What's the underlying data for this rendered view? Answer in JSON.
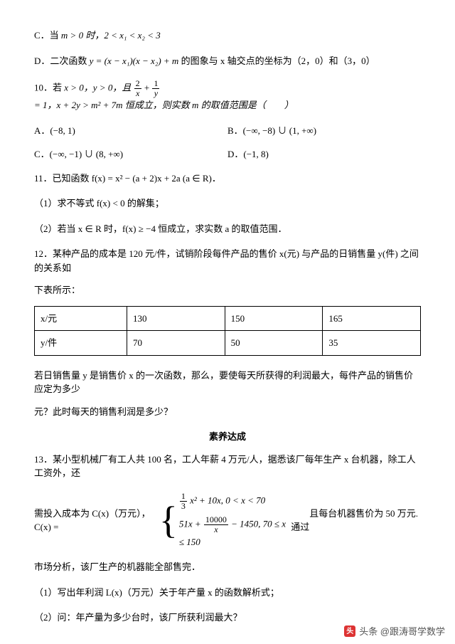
{
  "optC_prefix": "C．当 ",
  "optC_math": "m > 0 时，2 < x₁ < x₂ < 3",
  "optD_prefix": "D．二次函数 ",
  "optD_math": "y = (x − x₁)(x − x₂) + m",
  "optD_suffix": " 的图象与 x 轴交点的坐标为（2，0）和（3，0）",
  "q10_prefix": "10．若 ",
  "q10_cond": "x > 0，y > 0，且 ",
  "q10_eq_after": " = 1，x + 2y > m² + 7m 恒成立，则实数 m 的取值范围是（　　）",
  "q10_frac1_num": "2",
  "q10_frac1_den": "x",
  "q10_frac2_num": "1",
  "q10_frac2_den": "y",
  "q10A": "A．(−8, 1)",
  "q10B": "B．(−∞, −8) ∪ (1, +∞)",
  "q10C": "C．(−∞, −1) ∪ (8, +∞)",
  "q10D": "D．(−1, 8)",
  "q11": "11．已知函数 f(x) = x² − (a + 2)x + 2a (a ∈ R)．",
  "q11_1": "（1）求不等式 f(x) < 0 的解集；",
  "q11_2": "（2）若当 x ∈ R 时，f(x) ≥ −4 恒成立，求实数 a 的取值范围．",
  "q12_a": "12．某种产品的成本是 120 元/件，试销阶段每件产品的售价 x(元) 与产品的日销售量 y(件) 之间的关系如",
  "q12_b": "下表所示：",
  "table": {
    "r1": [
      "x/元",
      "130",
      "150",
      "165"
    ],
    "r2": [
      "y/件",
      "70",
      "50",
      "35"
    ]
  },
  "q12_c": "若日销售量 y 是销售价 x 的一次函数，那么，要使每天所获得的利润最大，每件产品的销售价应定为多少",
  "q12_d": "元？此时每天的销售利润是多少？",
  "section": "素养达成",
  "q13_a": "13．某小型机械厂有工人共 100 名，工人年薪 4 万元/人，据悉该厂每年生产 x 台机器，除工人工资外，还",
  "q13_b_pre": "需投入成本为 C(x)（万元），C(x) = ",
  "q13_piece1_frac_num": "1",
  "q13_piece1_frac_den": "3",
  "q13_piece1_rest": " x² + 10x, 0 < x < 70",
  "q13_piece2_pre": "51x + ",
  "q13_piece2_frac_num": "10000",
  "q13_piece2_frac_den": "x",
  "q13_piece2_rest": " − 1450, 70 ≤ x ≤ 150",
  "q13_b_post": "　　且每台机器售价为 50 万元. 通过",
  "q13_c": "市场分析，该厂生产的机器能全部售完．",
  "q13_1": "（1）写出年利润 L(x)（万元）关于年产量 x 的函数解析式；",
  "q13_2": "（2）问：年产量为多少台时，该厂所获利润最大？",
  "watermark": "头条 @跟涛哥学数学",
  "wm_icon": "头"
}
